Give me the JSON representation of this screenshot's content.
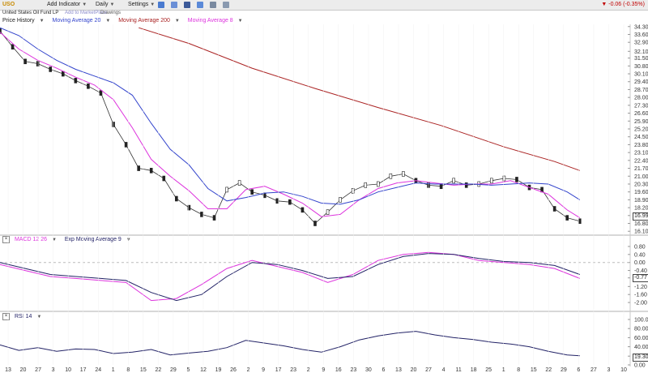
{
  "toolbar": {
    "symbol": "USO",
    "add_indicator": "Add Indicator",
    "period": "Daily",
    "settings": "Settings",
    "change": "-0.06 (-0.35%)",
    "change_color": "#c00000",
    "icons": [
      "email-icon",
      "share-icon",
      "facebook-icon",
      "twitter-icon",
      "print-icon",
      "export-icon"
    ],
    "icon_colors": [
      "#4a7bd0",
      "#6b8fd6",
      "#3b5998",
      "#5b8ad8",
      "#7a8aa0",
      "#8a9ab0"
    ]
  },
  "subbar": {
    "name": "United States Oil Fund LP",
    "links": [
      "Add to MarketPlace",
      "Drawings"
    ]
  },
  "price_legend": {
    "items": [
      {
        "label": "Price History",
        "color": "#333333"
      },
      {
        "label": "Moving Average 20",
        "color": "#3344cc"
      },
      {
        "label": "Moving Average 200",
        "color": "#aa2222"
      },
      {
        "label": "Moving Average 8",
        "color": "#dd33dd"
      }
    ]
  },
  "macd_legend": {
    "items": [
      {
        "label": "MACD 12 26",
        "color": "#dd33dd"
      },
      {
        "label": "Exp Moving Average 9",
        "color": "#222266"
      }
    ]
  },
  "rsi_legend": {
    "items": [
      {
        "label": "RSI 14",
        "color": "#222266"
      }
    ]
  },
  "last_price": "16.99",
  "macd_last": "-0.77",
  "rsi_last": "19.30",
  "x_labels": [
    "13",
    "20",
    "27",
    "3",
    "10",
    "17",
    "24",
    "1",
    "8",
    "15",
    "22",
    "29",
    "5",
    "12",
    "19",
    "26",
    "2",
    "9",
    "17",
    "23",
    "2",
    "9",
    "16",
    "23",
    "30",
    "6",
    "13",
    "20",
    "27",
    "4",
    "11",
    "18",
    "25",
    "1",
    "8",
    "15",
    "22",
    "29",
    "6",
    "27",
    "3",
    "10"
  ],
  "chart_data": [
    {
      "type": "line",
      "panel": "price",
      "y_ticks": [
        "34.30",
        "33.60",
        "32.90",
        "32.10",
        "31.50",
        "30.80",
        "30.10",
        "29.40",
        "28.70",
        "28.00",
        "27.30",
        "26.60",
        "25.90",
        "25.20",
        "24.50",
        "23.80",
        "23.10",
        "22.40",
        "21.70",
        "21.00",
        "20.30",
        "19.60",
        "18.90",
        "18.20",
        "17.50",
        "16.80",
        "16.10"
      ],
      "ylim": [
        15.9,
        34.5
      ],
      "x_range": [
        0,
        100
      ],
      "series": [
        {
          "name": "Price History",
          "color": "#333333",
          "x": [
            0,
            2,
            4,
            6,
            8,
            10,
            12,
            14,
            16,
            18,
            20,
            22,
            24,
            26,
            28,
            30,
            32,
            34,
            36,
            38,
            40,
            42,
            44,
            46,
            48,
            50,
            52,
            54,
            56,
            58,
            60,
            62,
            64,
            66,
            68,
            70,
            72,
            74,
            76,
            78,
            80,
            82,
            84,
            86,
            88,
            90,
            92
          ],
          "y": [
            33.9,
            32.5,
            31.2,
            31.0,
            30.5,
            30.1,
            29.5,
            29.0,
            28.4,
            25.6,
            23.8,
            21.7,
            21.5,
            20.8,
            19.0,
            18.2,
            17.6,
            17.3,
            19.8,
            20.4,
            19.6,
            19.3,
            18.8,
            18.7,
            18.0,
            16.8,
            17.8,
            18.9,
            19.7,
            20.2,
            20.3,
            21.0,
            21.2,
            20.6,
            20.2,
            20.1,
            20.6,
            20.2,
            20.3,
            20.6,
            20.8,
            20.7,
            20.0,
            19.8,
            18.1,
            17.3,
            17.0
          ]
        },
        {
          "name": "Moving Average 8",
          "color": "#dd33dd",
          "x": [
            0,
            3,
            6,
            9,
            12,
            15,
            18,
            21,
            24,
            27,
            30,
            33,
            36,
            39,
            42,
            45,
            48,
            51,
            54,
            57,
            60,
            63,
            66,
            69,
            72,
            75,
            78,
            81,
            84,
            87,
            90,
            92
          ],
          "y": [
            33.8,
            32.3,
            31.3,
            30.6,
            29.8,
            29.1,
            27.8,
            25.3,
            22.5,
            21.0,
            19.7,
            18.1,
            18.1,
            19.8,
            20.1,
            19.4,
            18.6,
            17.4,
            17.6,
            18.9,
            19.9,
            20.4,
            20.6,
            20.4,
            20.2,
            20.3,
            20.3,
            20.6,
            20.0,
            19.4,
            18.0,
            17.3
          ]
        },
        {
          "name": "Moving Average 20",
          "color": "#3344cc",
          "x": [
            0,
            3,
            6,
            9,
            12,
            15,
            18,
            21,
            24,
            27,
            30,
            33,
            36,
            39,
            42,
            45,
            48,
            51,
            54,
            57,
            60,
            63,
            66,
            69,
            72,
            75,
            78,
            81,
            84,
            87,
            90,
            92
          ],
          "y": [
            34.2,
            33.5,
            32.3,
            31.3,
            30.5,
            29.9,
            29.3,
            28.2,
            25.7,
            23.4,
            22.0,
            19.9,
            18.8,
            19.1,
            19.5,
            19.6,
            19.2,
            18.6,
            18.5,
            18.9,
            19.6,
            20.0,
            20.4,
            20.3,
            20.3,
            20.3,
            20.2,
            20.3,
            20.4,
            20.3,
            19.6,
            18.9
          ]
        },
        {
          "name": "Moving Average 200",
          "color": "#aa2222",
          "x": [
            22,
            30,
            40,
            50,
            60,
            70,
            80,
            88,
            92
          ],
          "y": [
            34.2,
            32.8,
            30.6,
            28.8,
            27.1,
            25.5,
            23.6,
            22.3,
            21.5
          ]
        }
      ]
    },
    {
      "type": "line",
      "panel": "macd",
      "y_ticks": [
        "0.80",
        "0.40",
        "0.00",
        "-0.40",
        "-0.77",
        "-1.20",
        "-1.60",
        "-2.00"
      ],
      "ylim": [
        -2.2,
        1.0
      ],
      "x_range": [
        0,
        100
      ],
      "series": [
        {
          "name": "MACD 12 26",
          "color": "#dd33dd",
          "x": [
            0,
            4,
            8,
            12,
            16,
            20,
            24,
            28,
            32,
            36,
            40,
            44,
            48,
            52,
            56,
            60,
            64,
            68,
            72,
            76,
            80,
            84,
            88,
            92
          ],
          "y": [
            -0.1,
            -0.4,
            -0.7,
            -0.8,
            -0.9,
            -1.0,
            -1.9,
            -1.8,
            -1.1,
            -0.3,
            0.1,
            -0.2,
            -0.5,
            -1.0,
            -0.6,
            0.1,
            0.4,
            0.5,
            0.4,
            0.1,
            0.0,
            -0.1,
            -0.3,
            -0.8
          ]
        },
        {
          "name": "Exp Moving Average 9",
          "color": "#222266",
          "x": [
            0,
            4,
            8,
            12,
            16,
            20,
            24,
            28,
            32,
            36,
            40,
            44,
            48,
            52,
            56,
            60,
            64,
            68,
            72,
            76,
            80,
            84,
            88,
            92
          ],
          "y": [
            0.0,
            -0.3,
            -0.6,
            -0.7,
            -0.8,
            -0.9,
            -1.5,
            -1.9,
            -1.6,
            -0.7,
            0.0,
            -0.1,
            -0.4,
            -0.8,
            -0.7,
            -0.1,
            0.3,
            0.45,
            0.4,
            0.2,
            0.05,
            0.0,
            -0.15,
            -0.6
          ]
        }
      ]
    },
    {
      "type": "line",
      "panel": "rsi",
      "y_ticks": [
        "100.00",
        "80.00",
        "60.00",
        "40.00",
        "19.30",
        "0.00"
      ],
      "ylim": [
        0,
        100
      ],
      "x_range": [
        0,
        100
      ],
      "series": [
        {
          "name": "RSI 14",
          "color": "#222266",
          "x": [
            0,
            3,
            6,
            9,
            12,
            15,
            18,
            21,
            24,
            27,
            30,
            33,
            36,
            39,
            42,
            45,
            48,
            51,
            54,
            57,
            60,
            63,
            66,
            69,
            72,
            75,
            78,
            81,
            84,
            87,
            90,
            92
          ],
          "y": [
            44,
            32,
            38,
            30,
            35,
            34,
            25,
            28,
            34,
            22,
            26,
            30,
            38,
            54,
            48,
            42,
            34,
            28,
            40,
            55,
            64,
            70,
            74,
            66,
            60,
            56,
            50,
            46,
            40,
            30,
            22,
            20
          ]
        }
      ]
    }
  ]
}
